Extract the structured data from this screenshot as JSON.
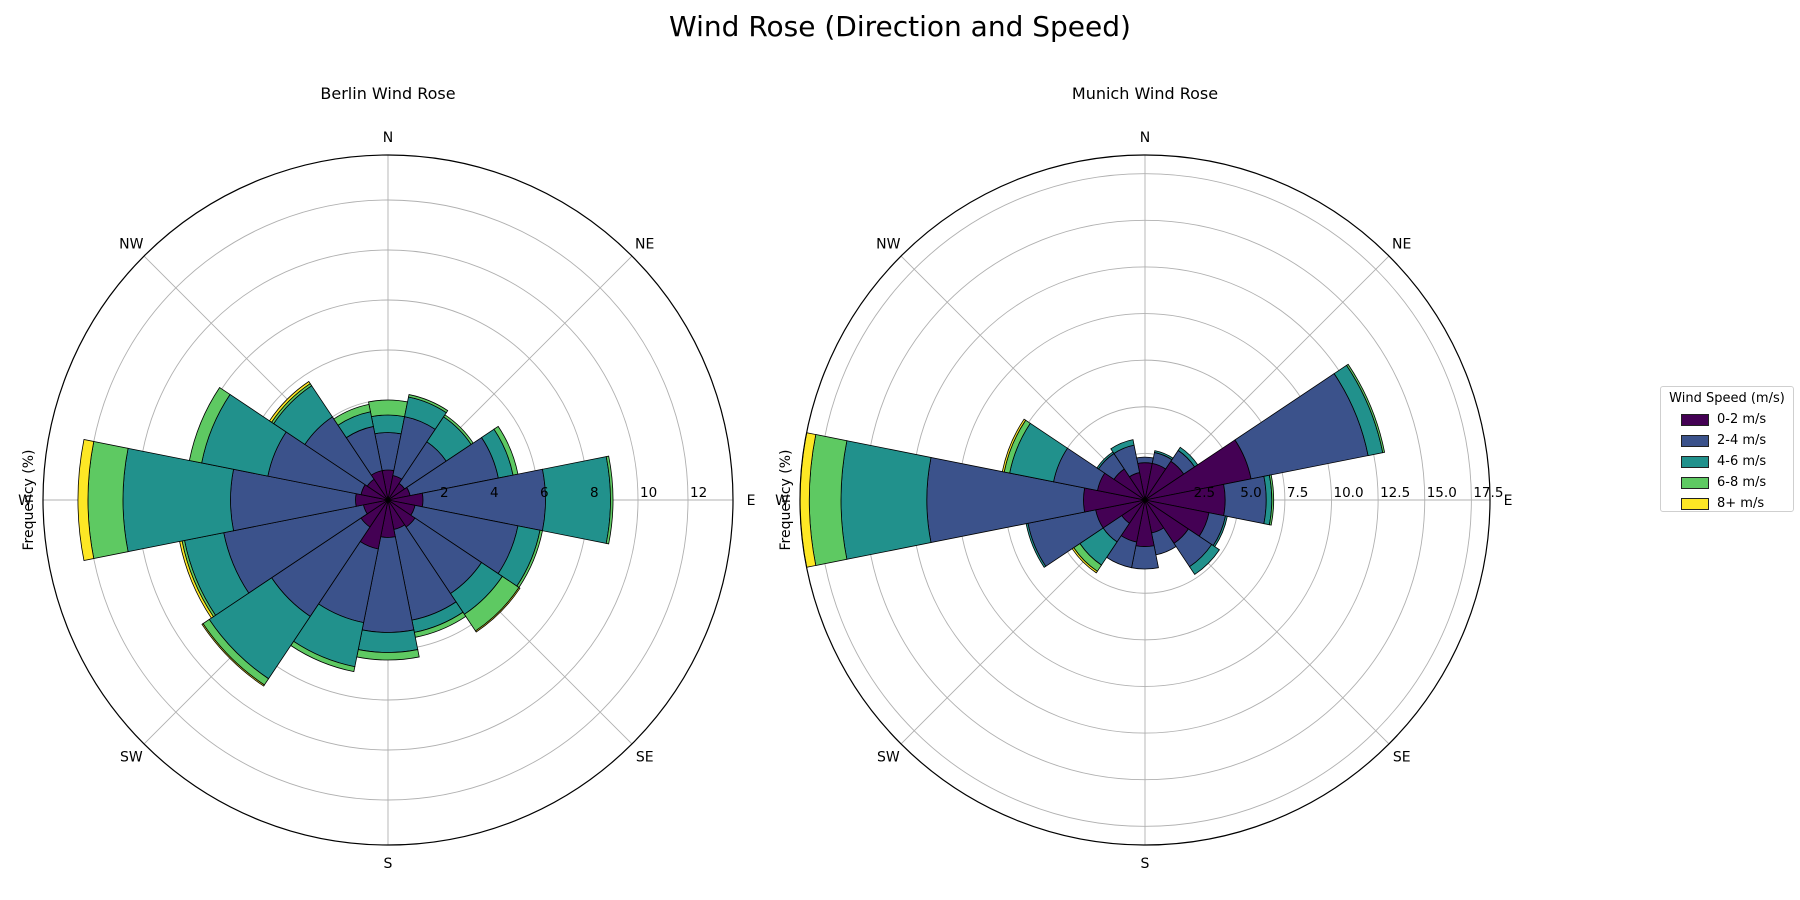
{
  "figure": {
    "title": "Wind Rose (Direction and Speed)"
  },
  "legend": {
    "title": "Wind Speed (m/s)",
    "items": [
      "0-2 m/s",
      "2-4 m/s",
      "4-6 m/s",
      "6-8 m/s",
      "8+ m/s"
    ]
  },
  "colors": [
    "#440154",
    "#3b528b",
    "#21918c",
    "#5ec962",
    "#fde725"
  ],
  "chart_data": [
    {
      "type": "bar",
      "subtype": "polar-stacked",
      "title": "Berlin Wind Rose",
      "ylabel": "Frequency (%)",
      "direction_labels": [
        "N",
        "NE",
        "E",
        "SE",
        "S",
        "SW",
        "W",
        "NW"
      ],
      "radial_ticks": [
        "2",
        "4",
        "6",
        "8",
        "10",
        "12"
      ],
      "rlim": [
        0,
        13.8
      ],
      "angles_deg": [
        0,
        22.5,
        45,
        67.5,
        90,
        112.5,
        135,
        157.5,
        180,
        202.5,
        225,
        247.5,
        270,
        292.5,
        315,
        337.5
      ],
      "series": [
        {
          "name": "0-2 m/s",
          "values": [
            1.2,
            1.0,
            0.8,
            0.9,
            1.4,
            1.1,
            1.3,
            1.2,
            1.5,
            2.0,
            1.3,
            1.0,
            1.3,
            1.1,
            1.0,
            1.2
          ]
        },
        {
          "name": "2-4 m/s",
          "values": [
            1.5,
            2.4,
            2.0,
            3.6,
            4.9,
            4.2,
            3.2,
            3.7,
            3.8,
            3.0,
            4.3,
            5.7,
            5.0,
            3.8,
            3.0,
            1.8
          ]
        },
        {
          "name": "4-6 m/s",
          "values": [
            0.7,
            0.8,
            1.2,
            0.6,
            2.6,
            0.9,
            1.0,
            0.5,
            0.8,
            1.8,
            3.0,
            1.6,
            4.3,
            2.7,
            1.5,
            0.6
          ]
        },
        {
          "name": "6-8 m/s",
          "values": [
            0.6,
            0.1,
            0.1,
            0.2,
            0.1,
            0.1,
            0.8,
            0.2,
            0.3,
            0.2,
            0.3,
            0.1,
            1.4,
            0.5,
            0.1,
            0.3
          ]
        },
        {
          "name": "8+ m/s",
          "values": [
            0.0,
            0.0,
            0.0,
            0.0,
            0.0,
            0.0,
            0.05,
            0.0,
            0.0,
            0.0,
            0.05,
            0.1,
            0.4,
            0.0,
            0.1,
            0.0
          ]
        }
      ]
    },
    {
      "type": "bar",
      "subtype": "polar-stacked",
      "title": "Munich Wind Rose",
      "ylabel": "Frequency (%)",
      "direction_labels": [
        "N",
        "NE",
        "E",
        "SE",
        "S",
        "SW",
        "W",
        "NW"
      ],
      "radial_ticks": [
        "2.5",
        "5.0",
        "7.5",
        "10.0",
        "12.5",
        "15.0",
        "17.5"
      ],
      "rlim": [
        0,
        18.5
      ],
      "angles_deg": [
        0,
        22.5,
        45,
        67.5,
        90,
        112.5,
        135,
        157.5,
        180,
        202.5,
        225,
        247.5,
        270,
        292.5,
        315,
        337.5
      ],
      "series": [
        {
          "name": "0-2 m/s",
          "values": [
            2.0,
            2.0,
            2.5,
            5.8,
            4.3,
            3.5,
            2.8,
            1.8,
            2.5,
            2.3,
            1.5,
            2.7,
            3.3,
            2.6,
            2.0,
            1.5
          ]
        },
        {
          "name": "2-4 m/s",
          "values": [
            0.3,
            0.6,
            0.7,
            6.4,
            2.2,
            0.9,
            1.5,
            1.2,
            1.2,
            1.4,
            1.2,
            3.7,
            8.4,
            2.4,
            1.0,
            1.5
          ]
        },
        {
          "name": "4-6 m/s",
          "values": [
            0.0,
            0.1,
            0.2,
            0.8,
            0.3,
            0.1,
            0.5,
            0.0,
            0.0,
            0.0,
            1.5,
            0.1,
            4.6,
            2.4,
            0.1,
            0.3
          ]
        },
        {
          "name": "6-8 m/s",
          "values": [
            0.0,
            0.0,
            0.0,
            0.1,
            0.1,
            0.0,
            0.0,
            0.0,
            0.0,
            0.0,
            0.4,
            0.0,
            1.7,
            0.3,
            0.0,
            0.0
          ]
        },
        {
          "name": "8+ m/s",
          "values": [
            0.0,
            0.0,
            0.0,
            0.0,
            0.0,
            0.0,
            0.0,
            0.0,
            0.0,
            0.0,
            0.1,
            0.0,
            0.5,
            0.1,
            0.0,
            0.0
          ]
        }
      ]
    }
  ]
}
